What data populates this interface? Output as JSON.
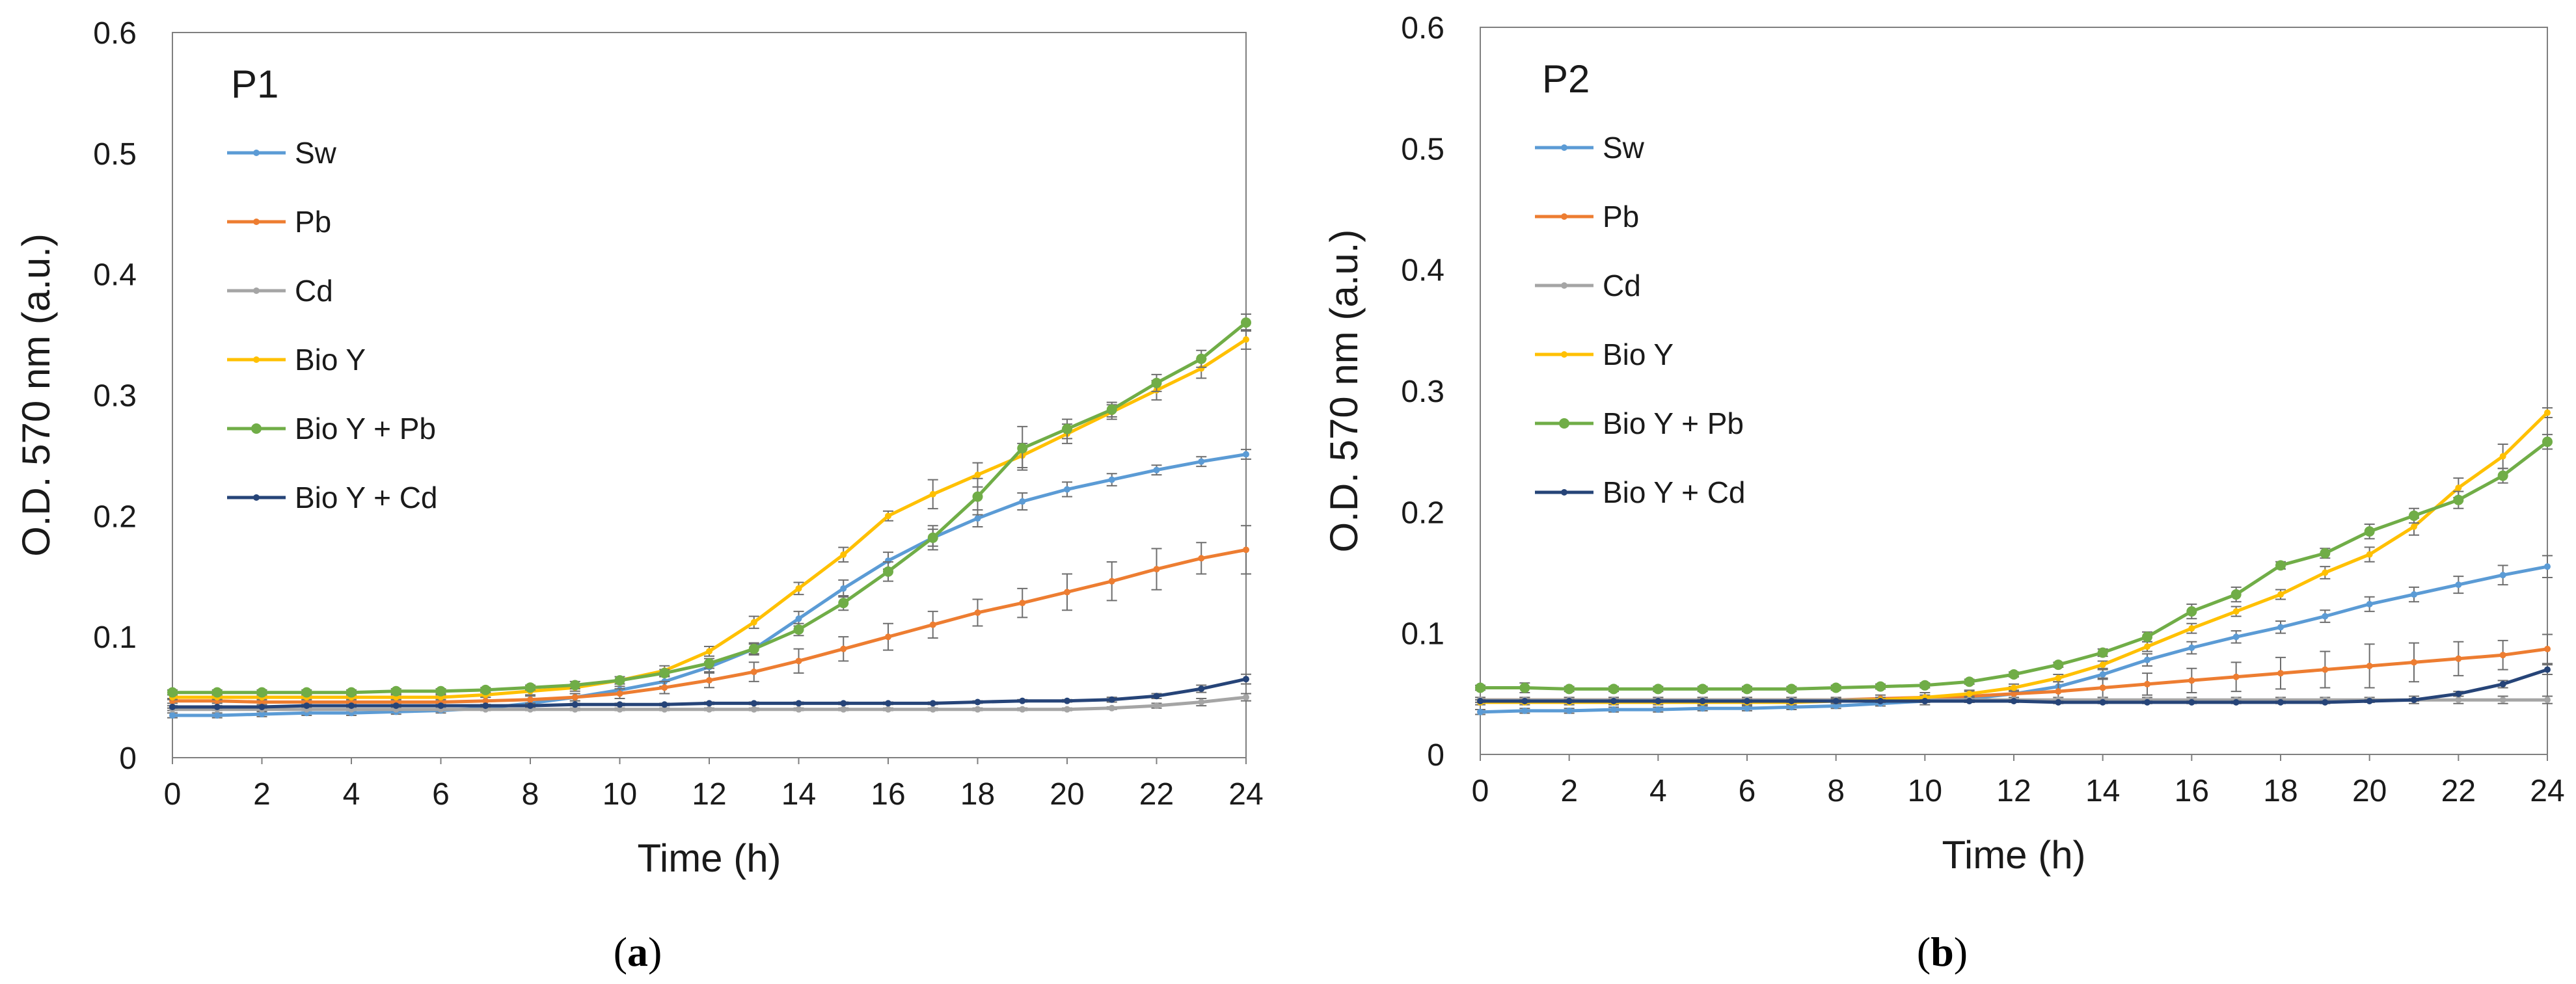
{
  "chart_data": [
    {
      "type": "line",
      "title": "P1",
      "caption_letter": "a",
      "xlabel": "Time (h)",
      "ylabel": "O.D. 570 nm (a.u.)",
      "xlim": [
        0,
        24
      ],
      "ylim": [
        0,
        0.6
      ],
      "xticks": [
        0,
        2,
        4,
        6,
        8,
        10,
        12,
        14,
        16,
        18,
        20,
        22,
        24
      ],
      "yticks": [
        0,
        0.1,
        0.2,
        0.3,
        0.4,
        0.5,
        0.6
      ],
      "ytick_labels": [
        "0",
        "0.1",
        "0.2",
        "0.3",
        "0.4",
        "0.5",
        "0.6"
      ],
      "grid": false,
      "legend_position": "top-left",
      "x": [
        0,
        1,
        2,
        3,
        4,
        5,
        6,
        7,
        8,
        9,
        10,
        11,
        12,
        13,
        14,
        15,
        16,
        17,
        18,
        19,
        20,
        21,
        22,
        23,
        24
      ],
      "series": [
        {
          "name": "Sw",
          "color": "#5B9BD5",
          "values": [
            0.035,
            0.035,
            0.036,
            0.037,
            0.037,
            0.038,
            0.039,
            0.041,
            0.045,
            0.05,
            0.056,
            0.063,
            0.075,
            0.09,
            0.115,
            0.14,
            0.163,
            0.182,
            0.198,
            0.212,
            0.222,
            0.23,
            0.238,
            0.245,
            0.251
          ],
          "errors": [
            0.002,
            0.002,
            0.002,
            0.002,
            0.002,
            0.002,
            0.002,
            0.002,
            0.003,
            0.003,
            0.003,
            0.004,
            0.004,
            0.005,
            0.006,
            0.007,
            0.007,
            0.007,
            0.007,
            0.007,
            0.006,
            0.005,
            0.004,
            0.004,
            0.004
          ]
        },
        {
          "name": "Pb",
          "color": "#ED7D31",
          "values": [
            0.047,
            0.047,
            0.046,
            0.046,
            0.046,
            0.046,
            0.046,
            0.047,
            0.048,
            0.05,
            0.053,
            0.058,
            0.064,
            0.071,
            0.08,
            0.09,
            0.1,
            0.11,
            0.12,
            0.128,
            0.137,
            0.146,
            0.156,
            0.165,
            0.172
          ],
          "errors": [
            0.002,
            0.002,
            0.002,
            0.002,
            0.002,
            0.002,
            0.002,
            0.003,
            0.003,
            0.003,
            0.004,
            0.005,
            0.006,
            0.008,
            0.01,
            0.01,
            0.011,
            0.011,
            0.011,
            0.012,
            0.015,
            0.016,
            0.017,
            0.013,
            0.02
          ]
        },
        {
          "name": "Cd",
          "color": "#A5A5A5",
          "values": [
            0.04,
            0.04,
            0.04,
            0.04,
            0.04,
            0.04,
            0.04,
            0.04,
            0.04,
            0.04,
            0.04,
            0.04,
            0.04,
            0.04,
            0.04,
            0.04,
            0.04,
            0.04,
            0.04,
            0.04,
            0.04,
            0.041,
            0.043,
            0.046,
            0.05
          ],
          "errors": [
            0.001,
            0.001,
            0.001,
            0.001,
            0.001,
            0.001,
            0.001,
            0.001,
            0.001,
            0.001,
            0.001,
            0.001,
            0.001,
            0.001,
            0.001,
            0.001,
            0.001,
            0.001,
            0.001,
            0.001,
            0.001,
            0.001,
            0.002,
            0.003,
            0.003
          ]
        },
        {
          "name": "Bio Y",
          "color": "#FFC000",
          "values": [
            0.05,
            0.05,
            0.05,
            0.05,
            0.05,
            0.05,
            0.05,
            0.052,
            0.055,
            0.058,
            0.064,
            0.072,
            0.088,
            0.112,
            0.14,
            0.168,
            0.2,
            0.218,
            0.234,
            0.25,
            0.268,
            0.286,
            0.304,
            0.322,
            0.346
          ],
          "errors": [
            0.002,
            0.002,
            0.002,
            0.002,
            0.002,
            0.002,
            0.002,
            0.002,
            0.003,
            0.003,
            0.003,
            0.004,
            0.004,
            0.005,
            0.005,
            0.006,
            0.004,
            0.012,
            0.01,
            0.01,
            0.008,
            0.006,
            0.008,
            0.008,
            0.008
          ]
        },
        {
          "name": "Bio Y + Pb",
          "color": "#70AD47",
          "values": [
            0.054,
            0.054,
            0.054,
            0.054,
            0.054,
            0.055,
            0.055,
            0.056,
            0.058,
            0.06,
            0.064,
            0.07,
            0.078,
            0.09,
            0.106,
            0.128,
            0.154,
            0.182,
            0.216,
            0.256,
            0.272,
            0.288,
            0.31,
            0.33,
            0.36
          ],
          "errors": [
            0.002,
            0.002,
            0.002,
            0.002,
            0.002,
            0.002,
            0.002,
            0.002,
            0.002,
            0.003,
            0.003,
            0.003,
            0.004,
            0.004,
            0.005,
            0.006,
            0.008,
            0.01,
            0.015,
            0.018,
            0.008,
            0.006,
            0.007,
            0.007,
            0.007
          ]
        },
        {
          "name": "Bio Y + Cd",
          "color": "#264478",
          "values": [
            0.042,
            0.042,
            0.042,
            0.043,
            0.043,
            0.043,
            0.043,
            0.043,
            0.043,
            0.044,
            0.044,
            0.044,
            0.045,
            0.045,
            0.045,
            0.045,
            0.045,
            0.045,
            0.046,
            0.047,
            0.047,
            0.048,
            0.051,
            0.057,
            0.065
          ],
          "errors": [
            0.001,
            0.001,
            0.001,
            0.001,
            0.001,
            0.001,
            0.001,
            0.001,
            0.001,
            0.001,
            0.001,
            0.001,
            0.001,
            0.001,
            0.001,
            0.001,
            0.001,
            0.001,
            0.001,
            0.001,
            0.001,
            0.002,
            0.002,
            0.003,
            0.004
          ]
        }
      ]
    },
    {
      "type": "line",
      "title": "P2",
      "caption_letter": "b",
      "xlabel": "Time (h)",
      "ylabel": "O.D. 570 nm (a.u.)",
      "xlim": [
        0,
        24
      ],
      "ylim": [
        0,
        0.6
      ],
      "xticks": [
        0,
        2,
        4,
        6,
        8,
        10,
        12,
        14,
        16,
        18,
        20,
        22,
        24
      ],
      "yticks": [
        0,
        0.1,
        0.2,
        0.3,
        0.4,
        0.5,
        0.6
      ],
      "ytick_labels": [
        "0",
        "0.1",
        "0.2",
        "0.3",
        "0.4",
        "0.5",
        "0.6"
      ],
      "grid": false,
      "legend_position": "top-left",
      "x": [
        0,
        1,
        2,
        3,
        4,
        5,
        6,
        7,
        8,
        9,
        10,
        11,
        12,
        13,
        14,
        15,
        16,
        17,
        18,
        19,
        20,
        21,
        22,
        23,
        24
      ],
      "series": [
        {
          "name": "Sw",
          "color": "#5B9BD5",
          "values": [
            0.035,
            0.036,
            0.036,
            0.037,
            0.037,
            0.038,
            0.038,
            0.039,
            0.04,
            0.042,
            0.044,
            0.046,
            0.05,
            0.056,
            0.066,
            0.078,
            0.088,
            0.097,
            0.105,
            0.114,
            0.124,
            0.132,
            0.14,
            0.148,
            0.155
          ],
          "errors": [
            0.002,
            0.002,
            0.002,
            0.002,
            0.002,
            0.002,
            0.002,
            0.002,
            0.002,
            0.002,
            0.003,
            0.003,
            0.003,
            0.004,
            0.004,
            0.005,
            0.005,
            0.005,
            0.005,
            0.005,
            0.006,
            0.006,
            0.007,
            0.008,
            0.009
          ]
        },
        {
          "name": "Pb",
          "color": "#ED7D31",
          "values": [
            0.045,
            0.045,
            0.045,
            0.045,
            0.045,
            0.045,
            0.045,
            0.045,
            0.045,
            0.046,
            0.047,
            0.048,
            0.05,
            0.052,
            0.055,
            0.058,
            0.061,
            0.064,
            0.067,
            0.07,
            0.073,
            0.076,
            0.079,
            0.082,
            0.087
          ],
          "errors": [
            0.002,
            0.002,
            0.002,
            0.002,
            0.002,
            0.002,
            0.002,
            0.002,
            0.002,
            0.003,
            0.004,
            0.005,
            0.006,
            0.008,
            0.008,
            0.009,
            0.01,
            0.012,
            0.013,
            0.015,
            0.018,
            0.016,
            0.014,
            0.012,
            0.012
          ]
        },
        {
          "name": "Cd",
          "color": "#A5A5A5",
          "values": [
            0.045,
            0.045,
            0.045,
            0.045,
            0.045,
            0.045,
            0.045,
            0.045,
            0.045,
            0.045,
            0.045,
            0.045,
            0.045,
            0.045,
            0.045,
            0.045,
            0.045,
            0.045,
            0.045,
            0.045,
            0.045,
            0.045,
            0.045,
            0.045,
            0.045
          ],
          "errors": [
            0.002,
            0.002,
            0.002,
            0.002,
            0.002,
            0.002,
            0.002,
            0.002,
            0.002,
            0.002,
            0.002,
            0.002,
            0.002,
            0.002,
            0.002,
            0.002,
            0.002,
            0.002,
            0.002,
            0.002,
            0.002,
            0.003,
            0.003,
            0.003,
            0.003
          ]
        },
        {
          "name": "Bio Y",
          "color": "#FFC000",
          "values": [
            0.043,
            0.043,
            0.043,
            0.043,
            0.043,
            0.043,
            0.043,
            0.043,
            0.044,
            0.045,
            0.047,
            0.05,
            0.055,
            0.063,
            0.074,
            0.089,
            0.104,
            0.118,
            0.132,
            0.15,
            0.165,
            0.188,
            0.22,
            0.246,
            0.282
          ],
          "errors": [
            0.002,
            0.002,
            0.002,
            0.002,
            0.002,
            0.002,
            0.002,
            0.002,
            0.002,
            0.002,
            0.002,
            0.002,
            0.003,
            0.003,
            0.003,
            0.004,
            0.004,
            0.004,
            0.004,
            0.005,
            0.006,
            0.007,
            0.008,
            0.01,
            0.004
          ]
        },
        {
          "name": "Bio Y + Pb",
          "color": "#70AD47",
          "values": [
            0.055,
            0.055,
            0.054,
            0.054,
            0.054,
            0.054,
            0.054,
            0.054,
            0.055,
            0.056,
            0.057,
            0.06,
            0.066,
            0.074,
            0.084,
            0.097,
            0.118,
            0.132,
            0.156,
            0.166,
            0.184,
            0.197,
            0.21,
            0.23,
            0.258
          ],
          "errors": [
            0.002,
            0.004,
            0.002,
            0.002,
            0.002,
            0.002,
            0.002,
            0.002,
            0.002,
            0.002,
            0.002,
            0.002,
            0.002,
            0.002,
            0.003,
            0.004,
            0.006,
            0.006,
            0.003,
            0.004,
            0.006,
            0.006,
            0.007,
            0.006,
            0.006
          ]
        },
        {
          "name": "Bio Y + Cd",
          "color": "#264478",
          "values": [
            0.044,
            0.044,
            0.044,
            0.044,
            0.044,
            0.044,
            0.044,
            0.044,
            0.044,
            0.044,
            0.044,
            0.044,
            0.044,
            0.043,
            0.043,
            0.043,
            0.043,
            0.043,
            0.043,
            0.043,
            0.044,
            0.045,
            0.05,
            0.058,
            0.07
          ],
          "errors": [
            0.001,
            0.001,
            0.001,
            0.001,
            0.001,
            0.001,
            0.001,
            0.001,
            0.001,
            0.001,
            0.001,
            0.001,
            0.001,
            0.001,
            0.001,
            0.001,
            0.001,
            0.001,
            0.001,
            0.001,
            0.001,
            0.001,
            0.002,
            0.003,
            0.004
          ]
        }
      ]
    }
  ]
}
